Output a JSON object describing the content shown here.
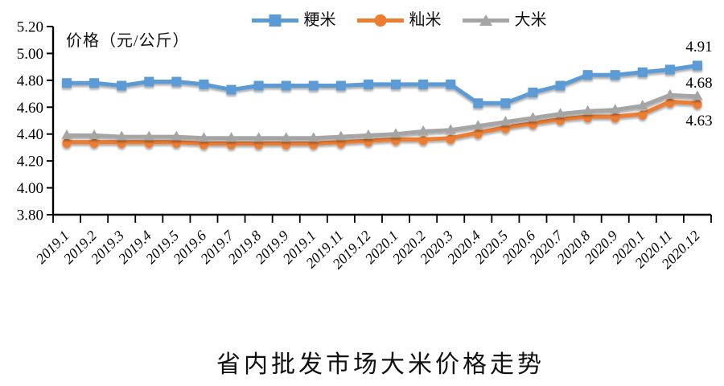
{
  "chart_data": {
    "type": "line",
    "title": "省内批发市场大米价格走势",
    "ylabel": "价格（元/公斤）",
    "ylim": [
      3.8,
      5.2
    ],
    "ytick_step": 0.2,
    "ytick_labels": [
      "5.20",
      "5.00",
      "4.80",
      "4.60",
      "4.40",
      "4.20",
      "4.00",
      "3.80"
    ],
    "grid": false,
    "legend_position": "top-center",
    "background_color": "#ffffff",
    "axis_color": "#000000",
    "categories": [
      "2019.1",
      "2019.2",
      "2019.3",
      "2019.4",
      "2019.5",
      "2019.6",
      "2019.7",
      "2019.8",
      "2019.9",
      "2019.1",
      "2019.11",
      "2019.12",
      "2020.1",
      "2020.2",
      "2020.3",
      "2020.4",
      "2020.5",
      "2020.6",
      "2020.7",
      "2020.8",
      "2020.9",
      "2020.1",
      "2020.11",
      "2020.12"
    ],
    "series": [
      {
        "name": "粳米",
        "color": "#5B9BD5",
        "marker": "square",
        "last_value_label": "4.91",
        "values": [
          4.78,
          4.78,
          4.76,
          4.79,
          4.79,
          4.77,
          4.73,
          4.76,
          4.76,
          4.76,
          4.76,
          4.77,
          4.77,
          4.77,
          4.77,
          4.63,
          4.63,
          4.71,
          4.76,
          4.84,
          4.84,
          4.86,
          4.88,
          4.91
        ]
      },
      {
        "name": "籼米",
        "color": "#ED7D31",
        "marker": "circle",
        "last_value_label": "4.63",
        "values": [
          4.34,
          4.34,
          4.34,
          4.34,
          4.34,
          4.33,
          4.33,
          4.33,
          4.33,
          4.33,
          4.34,
          4.35,
          4.36,
          4.36,
          4.37,
          4.41,
          4.45,
          4.48,
          4.51,
          4.53,
          4.53,
          4.55,
          4.64,
          4.63
        ]
      },
      {
        "name": "大米",
        "color": "#A5A5A5",
        "marker": "triangle",
        "last_value_label": "4.68",
        "values": [
          4.39,
          4.39,
          4.38,
          4.38,
          4.38,
          4.37,
          4.37,
          4.37,
          4.37,
          4.37,
          4.38,
          4.39,
          4.4,
          4.42,
          4.43,
          4.46,
          4.49,
          4.52,
          4.55,
          4.57,
          4.58,
          4.61,
          4.69,
          4.68
        ]
      }
    ]
  }
}
